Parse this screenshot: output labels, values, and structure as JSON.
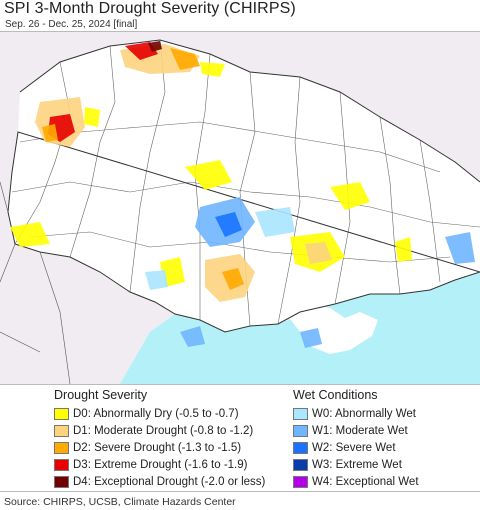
{
  "title": "SPI 3-Month Drought Severity (CHIRPS)",
  "subtitle": "Sep. 26 - Dec. 25, 2024 [final]",
  "legend": {
    "drought_heading": "Drought Severity",
    "wet_heading": "Wet Conditions",
    "drought": [
      {
        "code": "D0",
        "label": "D0: Abnormally Dry (-0.5 to -0.7)",
        "color": "#ffff00"
      },
      {
        "code": "D1",
        "label": "D1: Moderate Drought (-0.8 to -1.2)",
        "color": "#fcd37f"
      },
      {
        "code": "D2",
        "label": "D2: Severe Drought (-1.3 to -1.5)",
        "color": "#ffaa00"
      },
      {
        "code": "D3",
        "label": "D3: Extreme Drought (-1.6 to -1.9)",
        "color": "#e60000"
      },
      {
        "code": "D4",
        "label": "D4: Exceptional Drought (-2.0 or less)",
        "color": "#730000"
      }
    ],
    "wet": [
      {
        "code": "W0",
        "label": "W0: Abnormally Wet",
        "color": "#aae6ff"
      },
      {
        "code": "W1",
        "label": "W1: Moderate Wet",
        "color": "#6fb6ff"
      },
      {
        "code": "W2",
        "label": "W2: Severe Wet",
        "color": "#1a73ff"
      },
      {
        "code": "W3",
        "label": "W3: Extreme Wet",
        "color": "#0a3caa"
      },
      {
        "code": "W4",
        "label": "W4: Exceptional Wet",
        "color": "#b400e6"
      }
    ]
  },
  "map": {
    "sea_color": "#b4f0f8",
    "land_color": "#ffffff",
    "outside_color": "#f0ecf2"
  },
  "source": "Source: CHIRPS, UCSB, Climate Hazards Center"
}
